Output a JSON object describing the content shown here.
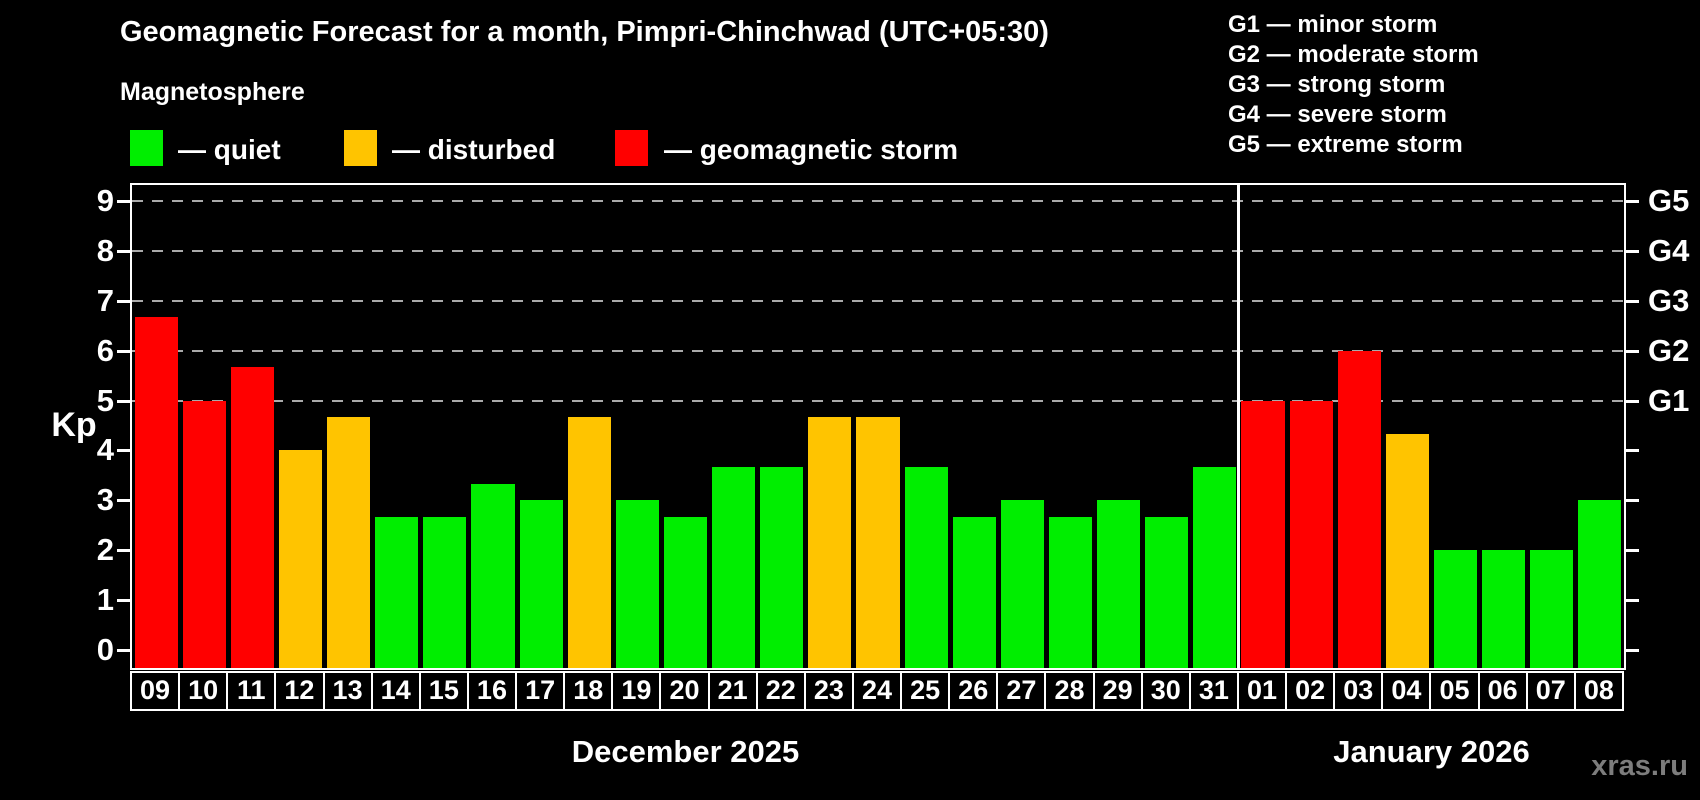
{
  "title": "Geomagnetic Forecast for a month, Pimpri-Chinchwad (UTC+05:30)",
  "subtitle": "Magnetosphere",
  "legend": {
    "items": [
      {
        "name": "quiet",
        "label": "— quiet",
        "color": "#00ee00"
      },
      {
        "name": "disturbed",
        "label": "— disturbed",
        "color": "#ffc400"
      },
      {
        "name": "storm",
        "label": "— geomagnetic storm",
        "color": "#ff0000"
      }
    ]
  },
  "g_legend": [
    {
      "label": "G1 — minor storm"
    },
    {
      "label": "G2 — moderate storm"
    },
    {
      "label": "G3 — strong storm"
    },
    {
      "label": "G4 — severe storm"
    },
    {
      "label": "G5 — extreme storm"
    }
  ],
  "watermark": "xras.ru",
  "chart_data": {
    "type": "bar",
    "title": "Geomagnetic Forecast for a month, Pimpri-Chinchwad (UTC+05:30)",
    "ylabel": "Kp",
    "ylim": [
      -0.36,
      9.32
    ],
    "yticks": [
      0,
      1,
      2,
      3,
      4,
      5,
      6,
      7,
      8,
      9
    ],
    "gridline_values": [
      5,
      6,
      7,
      8,
      9
    ],
    "grid": "dashed horizontal at G-storm levels only",
    "right_axis": [
      {
        "value": 5,
        "label": "G1"
      },
      {
        "value": 6,
        "label": "G2"
      },
      {
        "value": 7,
        "label": "G3"
      },
      {
        "value": 8,
        "label": "G4"
      },
      {
        "value": 9,
        "label": "G5"
      }
    ],
    "status_colors": {
      "quiet": "#00ee00",
      "disturbed": "#ffc400",
      "storm": "#ff0000"
    },
    "months": [
      {
        "label": "December 2025",
        "days": [
          {
            "day": "09",
            "kp": 6.67,
            "status": "storm"
          },
          {
            "day": "10",
            "kp": 5.0,
            "status": "storm"
          },
          {
            "day": "11",
            "kp": 5.67,
            "status": "storm"
          },
          {
            "day": "12",
            "kp": 4.0,
            "status": "disturbed"
          },
          {
            "day": "13",
            "kp": 4.67,
            "status": "disturbed"
          },
          {
            "day": "14",
            "kp": 2.67,
            "status": "quiet"
          },
          {
            "day": "15",
            "kp": 2.67,
            "status": "quiet"
          },
          {
            "day": "16",
            "kp": 3.33,
            "status": "quiet"
          },
          {
            "day": "17",
            "kp": 3.0,
            "status": "quiet"
          },
          {
            "day": "18",
            "kp": 4.67,
            "status": "disturbed"
          },
          {
            "day": "19",
            "kp": 3.0,
            "status": "quiet"
          },
          {
            "day": "20",
            "kp": 2.67,
            "status": "quiet"
          },
          {
            "day": "21",
            "kp": 3.67,
            "status": "quiet"
          },
          {
            "day": "22",
            "kp": 3.67,
            "status": "quiet"
          },
          {
            "day": "23",
            "kp": 4.67,
            "status": "disturbed"
          },
          {
            "day": "24",
            "kp": 4.67,
            "status": "disturbed"
          },
          {
            "day": "25",
            "kp": 3.67,
            "status": "quiet"
          },
          {
            "day": "26",
            "kp": 2.67,
            "status": "quiet"
          },
          {
            "day": "27",
            "kp": 3.0,
            "status": "quiet"
          },
          {
            "day": "28",
            "kp": 2.67,
            "status": "quiet"
          },
          {
            "day": "29",
            "kp": 3.0,
            "status": "quiet"
          },
          {
            "day": "30",
            "kp": 2.67,
            "status": "quiet"
          },
          {
            "day": "31",
            "kp": 3.67,
            "status": "quiet"
          }
        ]
      },
      {
        "label": "January 2026",
        "days": [
          {
            "day": "01",
            "kp": 5.0,
            "status": "storm"
          },
          {
            "day": "02",
            "kp": 5.0,
            "status": "storm"
          },
          {
            "day": "03",
            "kp": 6.0,
            "status": "storm"
          },
          {
            "day": "04",
            "kp": 4.33,
            "status": "disturbed"
          },
          {
            "day": "05",
            "kp": 2.0,
            "status": "quiet"
          },
          {
            "day": "06",
            "kp": 2.0,
            "status": "quiet"
          },
          {
            "day": "07",
            "kp": 2.0,
            "status": "quiet"
          },
          {
            "day": "08",
            "kp": 3.0,
            "status": "quiet"
          }
        ]
      }
    ]
  }
}
